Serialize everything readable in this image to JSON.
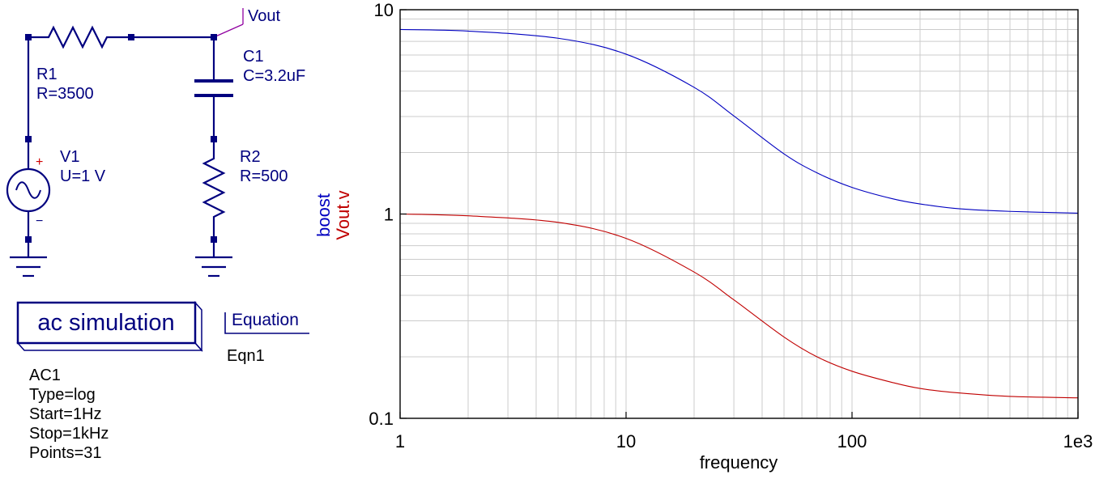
{
  "schematic": {
    "r1": {
      "name": "R1",
      "value": "R=3500"
    },
    "c1": {
      "name": "C1",
      "value": "C=3.2uF"
    },
    "r2": {
      "name": "R2",
      "value": "R=500"
    },
    "v1": {
      "name": "V1",
      "value": "U=1 V",
      "plus": "+",
      "minus": "−"
    },
    "vout_label": "Vout",
    "sim_box_label": "ac simulation",
    "ac1": {
      "name": "AC1",
      "type": "Type=log",
      "start": "Start=1Hz",
      "stop": "Stop=1kHz",
      "points": "Points=31"
    },
    "equation": {
      "label": "Equation",
      "name": "Eqn1"
    }
  },
  "chart_data": {
    "type": "line",
    "xlabel": "frequency",
    "ylabel": "",
    "xscale": "log",
    "yscale": "log",
    "xlim": [
      1,
      1000
    ],
    "ylim": [
      0.1,
      10
    ],
    "xticks": [
      "1",
      "10",
      "100",
      "1e3"
    ],
    "yticks": [
      "0.1",
      "1",
      "10"
    ],
    "grid": true,
    "legend": "left-vertical",
    "series": [
      {
        "name": "boost",
        "color": "#0000c0",
        "x": [
          1,
          2,
          5,
          10,
          20,
          30,
          50,
          70,
          100,
          150,
          200,
          300,
          500,
          1000
        ],
        "y": [
          8.0,
          7.86,
          7.25,
          6.06,
          4.17,
          3.02,
          1.97,
          1.59,
          1.35,
          1.19,
          1.12,
          1.06,
          1.03,
          1.01
        ]
      },
      {
        "name": "Vout.v",
        "color": "#c00000",
        "x": [
          1,
          2,
          5,
          10,
          20,
          30,
          50,
          70,
          100,
          150,
          200,
          300,
          500,
          1000
        ],
        "y": [
          1.0,
          0.98,
          0.91,
          0.76,
          0.52,
          0.38,
          0.25,
          0.2,
          0.17,
          0.15,
          0.14,
          0.133,
          0.128,
          0.126
        ]
      }
    ]
  }
}
